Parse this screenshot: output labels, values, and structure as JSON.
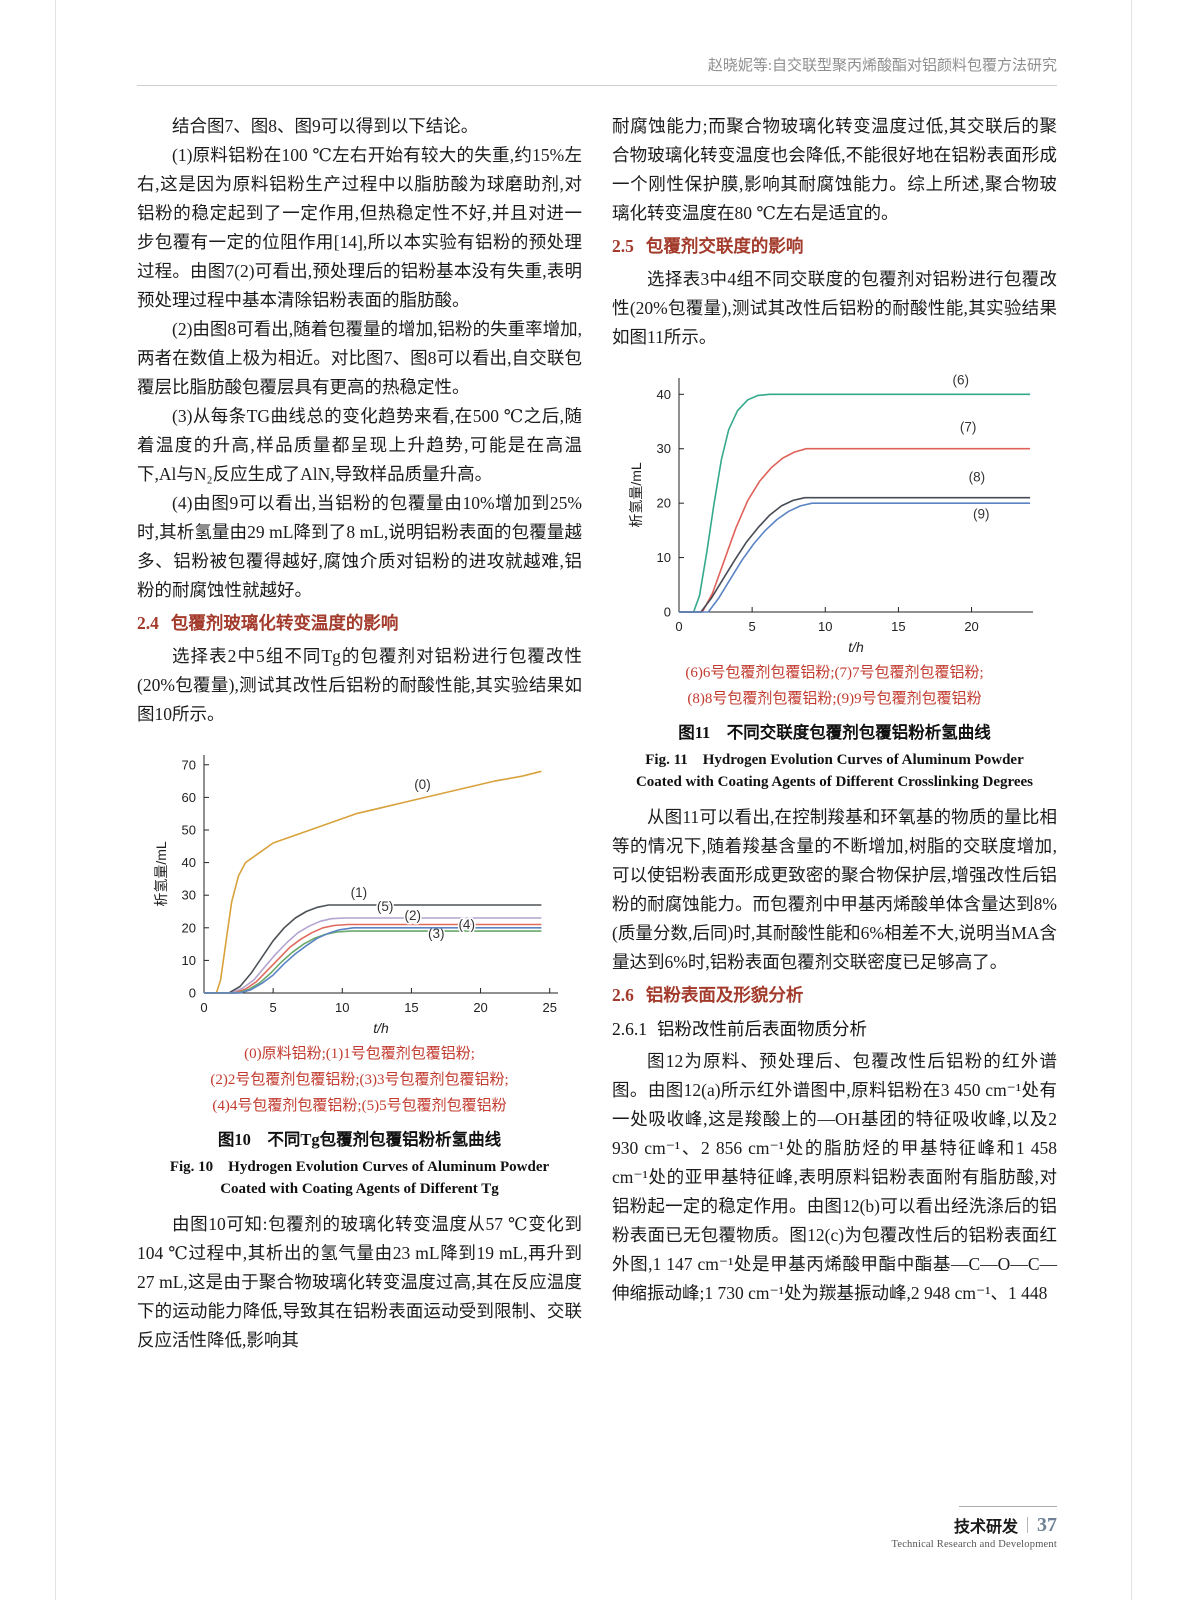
{
  "header": {
    "running_title": "赵晓妮等:自交联型聚丙烯酸酯对铝颜料包覆方法研究"
  },
  "left_column": {
    "p1": "结合图7、图8、图9可以得到以下结论。",
    "p2": "(1)原料铝粉在100 ℃左右开始有较大的失重,约15%左右,这是因为原料铝粉生产过程中以脂肪酸为球磨助剂,对铝粉的稳定起到了一定作用,但热稳定性不好,并且对进一步包覆有一定的位阻作用[14],所以本实验有铝粉的预处理过程。由图7(2)可看出,预处理后的铝粉基本没有失重,表明预处理过程中基本清除铝粉表面的脂肪酸。",
    "p3": "(2)由图8可看出,随着包覆量的增加,铝粉的失重率增加,两者在数值上极为相近。对比图7、图8可以看出,自交联包覆层比脂肪酸包覆层具有更高的热稳定性。",
    "p4": "(3)从每条TG曲线总的变化趋势来看,在500 ℃之后,随着温度的升高,样品质量都呈现上升趋势,可能是在高温下,Al与N₂反应生成了AlN,导致样品质量升高。",
    "p5": "(4)由图9可以看出,当铝粉的包覆量由10%增加到25%时,其析氢量由29 mL降到了8 mL,说明铝粉表面的包覆量越多、铝粉被包覆得越好,腐蚀介质对铝粉的进攻就越难,铝粉的耐腐蚀性就越好。",
    "section_2_4": {
      "number": "2.4",
      "title": "包覆剂玻璃化转变温度的影响"
    },
    "p6": "选择表2中5组不同Tg的包覆剂对铝粉进行包覆改性(20%包覆量),测试其改性后铝粉的耐酸性能,其实验结果如图10所示。",
    "p7": "由图10可知:包覆剂的玻璃化转变温度从57 ℃变化到104 ℃过程中,其析出的氢气量由23 mL降到19 mL,再升到27 mL,这是由于聚合物玻璃化转变温度过高,其在反应温度下的运动能力降低,导致其在铝粉表面运动受到限制、交联反应活性降低,影响其"
  },
  "right_column": {
    "p1": "耐腐蚀能力;而聚合物玻璃化转变温度过低,其交联后的聚合物玻璃化转变温度也会降低,不能很好地在铝粉表面形成一个刚性保护膜,影响其耐腐蚀能力。综上所述,聚合物玻璃化转变温度在80 ℃左右是适宜的。",
    "section_2_5": {
      "number": "2.5",
      "title": "包覆剂交联度的影响"
    },
    "p2": "选择表3中4组不同交联度的包覆剂对铝粉进行包覆改性(20%包覆量),测试其改性后铝粉的耐酸性能,其实验结果如图11所示。",
    "p3": "从图11可以看出,在控制羧基和环氧基的物质的量比相等的情况下,随着羧基含量的不断增加,树脂的交联度增加,可以使铝粉表面形成更致密的聚合物保护层,增强改性后铝粉的耐腐蚀能力。而包覆剂中甲基丙烯酸单体含量达到8%(质量分数,后同)时,其耐酸性能和6%相差不大,说明当MA含量达到6%时,铝粉表面包覆剂交联密度已足够高了。",
    "section_2_6": {
      "number": "2.6",
      "title": "铝粉表面及形貌分析"
    },
    "section_2_6_1": {
      "number": "2.6.1",
      "title": "铝粉改性前后表面物质分析"
    },
    "p4": "图12为原料、预处理后、包覆改性后铝粉的红外谱图。由图12(a)所示红外谱图中,原料铝粉在3 450 cm⁻¹处有一处吸收峰,这是羧酸上的—OH基团的特征吸收峰,以及2 930 cm⁻¹、2 856 cm⁻¹处的脂肪烃的甲基特征峰和1 458 cm⁻¹处的亚甲基特征峰,表明原料铝粉表面附有脂肪酸,对铝粉起一定的稳定作用。由图12(b)可以看出经洗涤后的铝粉表面已无包覆物质。图12(c)为包覆改性后的铝粉表面红外图,1 147 cm⁻¹处是甲基丙烯酸甲酯中酯基—C—O—C—伸缩振动峰;1 730 cm⁻¹处为羰基振动峰,2 948 cm⁻¹、1 448"
  },
  "footer": {
    "label_zh": "技术研发",
    "page_number": "37",
    "label_en": "Technical Research and Development"
  },
  "chart_data": [
    {
      "id": "fig10",
      "type": "line",
      "title_zh": "图10　不同Tg包覆剂包覆铝粉析氢曲线",
      "title_en": "Fig. 10　Hydrogen Evolution Curves of Aluminum Powder Coated with Coating Agents of Different Tg",
      "xlabel": "t/h",
      "ylabel": "析氢量/mL",
      "xlim": [
        0,
        25.6
      ],
      "xticks": [
        0,
        5,
        10,
        15,
        20,
        25
      ],
      "ylim": [
        0,
        73
      ],
      "yticks": [
        0,
        10,
        20,
        30,
        40,
        50,
        60,
        70
      ],
      "grid": false,
      "legend_lines": [
        "(0)原料铝粉;(1)1号包覆剂包覆铝粉;",
        "(2)2号包覆剂包覆铝粉;(3)3号包覆剂包覆铝粉;",
        "(4)4号包覆剂包覆铝粉;(5)5号包覆剂包覆铝粉"
      ],
      "series": [
        {
          "name": "原料铝粉",
          "label": "(0)",
          "color": "#D8A23C",
          "label_at": [
            15.2,
            62.5
          ],
          "x": [
            0,
            0.9,
            1.2,
            1.6,
            2.0,
            2.5,
            3.0,
            4.0,
            5.0,
            7.0,
            9.0,
            11.0,
            13.0,
            15.0,
            17.0,
            19.0,
            21.0,
            23.0,
            24.4
          ],
          "y": [
            0,
            0,
            4,
            16,
            28,
            36,
            40,
            43,
            46,
            49,
            52,
            55,
            57,
            59,
            61,
            63,
            65,
            66.5,
            68
          ]
        },
        {
          "name": "1号包覆剂包覆铝粉",
          "label": "(1)",
          "color": "#4D5257",
          "label_at": [
            10.6,
            29.5
          ],
          "x": [
            0,
            1.8,
            2.6,
            3.4,
            4.2,
            5.0,
            5.8,
            6.6,
            7.4,
            8.2,
            9.0,
            10.0,
            11.0,
            24.4
          ],
          "y": [
            0,
            0,
            2,
            6,
            11,
            16,
            20,
            23,
            25,
            26.3,
            27,
            27,
            27,
            27
          ]
        },
        {
          "name": "5号包覆剂包覆铝粉",
          "label": "(5)",
          "color": "#B3A4CF",
          "label_at": [
            12.5,
            25.2
          ],
          "x": [
            0,
            2.0,
            2.8,
            3.6,
            4.4,
            5.2,
            6.0,
            6.8,
            7.6,
            8.4,
            9.2,
            10.2,
            11.2,
            24.4
          ],
          "y": [
            0,
            0,
            1.5,
            4,
            8,
            12,
            15.5,
            18.5,
            20.5,
            22,
            22.8,
            23,
            23,
            23
          ]
        },
        {
          "name": "2号包覆剂包覆铝粉",
          "label": "(2)",
          "color": "#E06A5E",
          "label_at": [
            14.5,
            22.4
          ],
          "x": [
            0,
            2.2,
            3.0,
            3.8,
            4.6,
            5.4,
            6.2,
            7.0,
            7.8,
            8.6,
            9.4,
            10.4,
            11.4,
            24.4
          ],
          "y": [
            0,
            0,
            1.2,
            3.5,
            7,
            10.5,
            14,
            16.5,
            18.5,
            20,
            20.7,
            21,
            21,
            21
          ]
        },
        {
          "name": "3号包覆剂包覆铝粉",
          "label": "(3)",
          "color": "#67A968",
          "label_at": [
            16.2,
            16.8
          ],
          "x": [
            0,
            2.4,
            3.2,
            4.0,
            4.8,
            5.6,
            6.4,
            7.2,
            8.0,
            8.8,
            9.6,
            10.6,
            11.6,
            24.4
          ],
          "y": [
            0,
            0,
            1,
            3,
            6,
            9.5,
            12.5,
            15,
            16.8,
            18,
            18.7,
            19,
            19,
            19
          ]
        },
        {
          "name": "4号包覆剂包覆铝粉",
          "label": "(4)",
          "color": "#5B84C4",
          "label_at": [
            18.4,
            19.6
          ],
          "x": [
            0,
            2.6,
            3.4,
            4.2,
            5.0,
            5.8,
            6.6,
            7.4,
            8.2,
            9.0,
            9.8,
            10.8,
            11.8,
            24.4
          ],
          "y": [
            0,
            0,
            1,
            3,
            5.5,
            9,
            12,
            14.5,
            16.8,
            18.3,
            19.4,
            20,
            20,
            20
          ]
        }
      ]
    },
    {
      "id": "fig11",
      "type": "line",
      "title_zh": "图11　不同交联度包覆剂包覆铝粉析氢曲线",
      "title_en": "Fig. 11　Hydrogen Evolution Curves of Aluminum Powder Coated with Coating Agents of Different Crosslinking Degrees",
      "xlabel": "t/h",
      "ylabel": "析氢量/mL",
      "xlim": [
        0,
        24.2
      ],
      "xticks": [
        0,
        5,
        10,
        15,
        20
      ],
      "ylim": [
        0,
        43
      ],
      "yticks": [
        0,
        10,
        20,
        30,
        40
      ],
      "grid": false,
      "legend_lines": [
        "(6)6号包覆剂包覆铝粉;(7)7号包覆剂包覆铝粉;",
        "(8)8号包覆剂包覆铝粉;(9)9号包覆剂包覆铝粉"
      ],
      "series": [
        {
          "name": "6号包覆剂包覆铝粉",
          "label": "(6)",
          "color": "#35A98C",
          "label_at": [
            18.7,
            41.8
          ],
          "x": [
            0,
            1.0,
            1.4,
            1.9,
            2.4,
            2.9,
            3.4,
            4.0,
            4.7,
            5.4,
            6.2,
            7.2,
            9.0,
            24.0
          ],
          "y": [
            0,
            0,
            3,
            11,
            20,
            28,
            33.5,
            37,
            39,
            39.8,
            40,
            40,
            40,
            40
          ]
        },
        {
          "name": "7号包覆剂包覆铝粉",
          "label": "(7)",
          "color": "#E0635A",
          "label_at": [
            19.2,
            33.2
          ],
          "x": [
            0,
            1.6,
            2.3,
            3.1,
            3.9,
            4.7,
            5.5,
            6.3,
            7.1,
            7.9,
            8.7,
            9.7,
            11.0,
            24.0
          ],
          "y": [
            0,
            0,
            3.5,
            9.5,
            15.5,
            20.5,
            24,
            26.5,
            28.3,
            29.4,
            30,
            30,
            30,
            30
          ]
        },
        {
          "name": "8号包覆剂包覆铝粉",
          "label": "(8)",
          "color": "#474C54",
          "label_at": [
            19.8,
            24.0
          ],
          "x": [
            0,
            1.5,
            2.2,
            3.0,
            3.8,
            4.6,
            5.4,
            6.2,
            7.0,
            7.8,
            8.6,
            9.6,
            11.0,
            24.0
          ],
          "y": [
            0,
            0,
            2.5,
            6,
            9.5,
            12.8,
            15.5,
            17.8,
            19.5,
            20.5,
            21,
            21,
            21,
            21
          ]
        },
        {
          "name": "9号包覆剂包覆铝粉",
          "label": "(9)",
          "color": "#5B84C4",
          "label_at": [
            20.1,
            17.2
          ],
          "x": [
            0,
            2.0,
            2.7,
            3.5,
            4.3,
            5.1,
            5.9,
            6.7,
            7.5,
            8.3,
            9.1,
            10.1,
            11.5,
            24.0
          ],
          "y": [
            0,
            0,
            2.5,
            6,
            9.5,
            12.5,
            15,
            17,
            18.5,
            19.5,
            20,
            20,
            20,
            20
          ]
        }
      ]
    }
  ]
}
